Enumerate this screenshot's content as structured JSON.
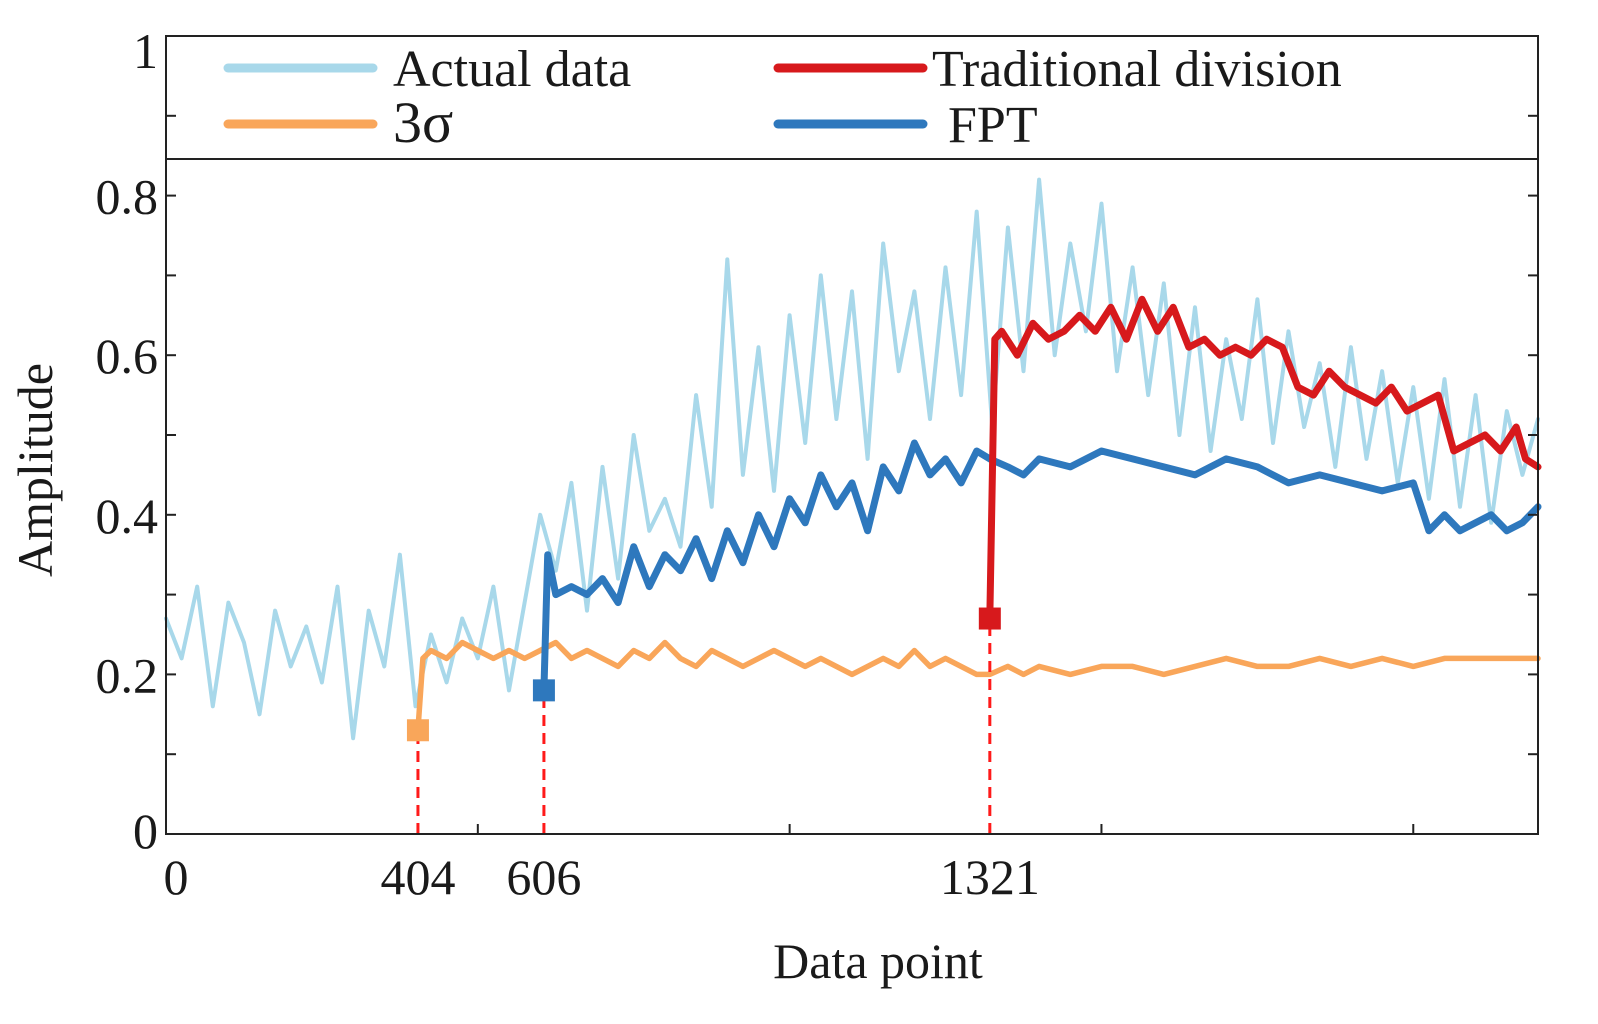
{
  "chart_data": {
    "type": "line",
    "title": "",
    "xlabel": "Data point",
    "ylabel": "Amplitude",
    "xlim": [
      0,
      2200
    ],
    "ylim": [
      0,
      1
    ],
    "x_ticks": [
      0,
      500,
      1000,
      1500,
      2000
    ],
    "x_tick_labels": [
      {
        "value": 0,
        "label": "0"
      },
      {
        "value": 404,
        "label": "404"
      },
      {
        "value": 606,
        "label": "606"
      },
      {
        "value": 1321,
        "label": "1321"
      }
    ],
    "y_ticks": [
      0,
      0.1,
      0.2,
      0.3,
      0.4,
      0.5,
      0.6,
      0.7,
      0.8,
      0.9,
      1
    ],
    "y_tick_labels": [
      {
        "value": 0,
        "label": "0"
      },
      {
        "value": 0.2,
        "label": "0.2"
      },
      {
        "value": 0.4,
        "label": "0.4"
      },
      {
        "value": 0.6,
        "label": "0.6"
      },
      {
        "value": 0.8,
        "label": "0.8"
      },
      {
        "value": 1,
        "label": "1"
      }
    ],
    "legend_position": "top",
    "series": [
      {
        "name": "Actual data",
        "color": "#a8d8ea",
        "x": [
          0,
          25,
          50,
          75,
          100,
          125,
          150,
          175,
          200,
          225,
          250,
          275,
          300,
          325,
          350,
          375,
          400,
          425,
          450,
          475,
          500,
          525,
          550,
          575,
          600,
          625,
          650,
          675,
          700,
          725,
          750,
          775,
          800,
          825,
          850,
          875,
          900,
          925,
          950,
          975,
          1000,
          1025,
          1050,
          1075,
          1100,
          1125,
          1150,
          1175,
          1200,
          1225,
          1250,
          1275,
          1300,
          1325,
          1350,
          1375,
          1400,
          1425,
          1450,
          1475,
          1500,
          1525,
          1550,
          1575,
          1600,
          1625,
          1650,
          1675,
          1700,
          1725,
          1750,
          1775,
          1800,
          1825,
          1850,
          1875,
          1900,
          1925,
          1950,
          1975,
          2000,
          2025,
          2050,
          2075,
          2100,
          2125,
          2150,
          2175,
          2200
        ],
        "values": [
          0.27,
          0.22,
          0.31,
          0.16,
          0.29,
          0.24,
          0.15,
          0.28,
          0.21,
          0.26,
          0.19,
          0.31,
          0.12,
          0.28,
          0.21,
          0.35,
          0.16,
          0.25,
          0.19,
          0.27,
          0.22,
          0.31,
          0.18,
          0.29,
          0.4,
          0.33,
          0.44,
          0.28,
          0.46,
          0.32,
          0.5,
          0.38,
          0.42,
          0.36,
          0.55,
          0.41,
          0.72,
          0.45,
          0.61,
          0.43,
          0.65,
          0.49,
          0.7,
          0.52,
          0.68,
          0.47,
          0.74,
          0.58,
          0.68,
          0.52,
          0.71,
          0.55,
          0.78,
          0.51,
          0.76,
          0.58,
          0.82,
          0.6,
          0.74,
          0.63,
          0.79,
          0.58,
          0.71,
          0.55,
          0.69,
          0.5,
          0.66,
          0.48,
          0.62,
          0.52,
          0.67,
          0.49,
          0.63,
          0.51,
          0.59,
          0.46,
          0.61,
          0.47,
          0.58,
          0.44,
          0.56,
          0.42,
          0.57,
          0.41,
          0.55,
          0.39,
          0.53,
          0.45,
          0.52
        ]
      },
      {
        "name": "3σ",
        "color": "#f9a65a",
        "x": [
          404,
          412,
          425,
          450,
          475,
          500,
          525,
          550,
          575,
          600,
          625,
          650,
          675,
          700,
          725,
          750,
          775,
          800,
          825,
          850,
          875,
          900,
          925,
          950,
          975,
          1000,
          1025,
          1050,
          1075,
          1100,
          1125,
          1150,
          1175,
          1200,
          1225,
          1250,
          1275,
          1300,
          1321,
          1350,
          1375,
          1400,
          1450,
          1500,
          1550,
          1600,
          1650,
          1700,
          1750,
          1800,
          1850,
          1900,
          1950,
          2000,
          2050,
          2100,
          2150,
          2200
        ],
        "values": [
          0.13,
          0.22,
          0.23,
          0.22,
          0.24,
          0.23,
          0.22,
          0.23,
          0.22,
          0.23,
          0.24,
          0.22,
          0.23,
          0.22,
          0.21,
          0.23,
          0.22,
          0.24,
          0.22,
          0.21,
          0.23,
          0.22,
          0.21,
          0.22,
          0.23,
          0.22,
          0.21,
          0.22,
          0.21,
          0.2,
          0.21,
          0.22,
          0.21,
          0.23,
          0.21,
          0.22,
          0.21,
          0.2,
          0.2,
          0.21,
          0.2,
          0.21,
          0.2,
          0.21,
          0.21,
          0.2,
          0.21,
          0.22,
          0.21,
          0.21,
          0.22,
          0.21,
          0.22,
          0.21,
          0.22,
          0.22,
          0.22,
          0.22
        ]
      },
      {
        "name": "FPT",
        "color": "#2e78bd",
        "x": [
          606,
          612,
          625,
          650,
          675,
          700,
          725,
          750,
          775,
          800,
          825,
          850,
          875,
          900,
          925,
          950,
          975,
          1000,
          1025,
          1050,
          1075,
          1100,
          1125,
          1150,
          1175,
          1200,
          1225,
          1250,
          1275,
          1300,
          1321,
          1350,
          1375,
          1400,
          1450,
          1500,
          1550,
          1600,
          1650,
          1700,
          1750,
          1800,
          1850,
          1900,
          1950,
          2000,
          2025,
          2050,
          2075,
          2100,
          2125,
          2150,
          2175,
          2200
        ],
        "values": [
          0.18,
          0.35,
          0.3,
          0.31,
          0.3,
          0.32,
          0.29,
          0.36,
          0.31,
          0.35,
          0.33,
          0.37,
          0.32,
          0.38,
          0.34,
          0.4,
          0.36,
          0.42,
          0.39,
          0.45,
          0.41,
          0.44,
          0.38,
          0.46,
          0.43,
          0.49,
          0.45,
          0.47,
          0.44,
          0.48,
          0.47,
          0.46,
          0.45,
          0.47,
          0.46,
          0.48,
          0.47,
          0.46,
          0.45,
          0.47,
          0.46,
          0.44,
          0.45,
          0.44,
          0.43,
          0.44,
          0.38,
          0.4,
          0.38,
          0.39,
          0.4,
          0.38,
          0.39,
          0.41
        ]
      },
      {
        "name": "Traditional division",
        "color": "#d7191c",
        "x": [
          1321,
          1329,
          1340,
          1365,
          1390,
          1415,
          1440,
          1465,
          1490,
          1515,
          1540,
          1565,
          1590,
          1615,
          1640,
          1665,
          1690,
          1715,
          1740,
          1765,
          1790,
          1815,
          1840,
          1865,
          1890,
          1915,
          1940,
          1965,
          1990,
          2015,
          2040,
          2065,
          2090,
          2115,
          2140,
          2165,
          2180,
          2200
        ],
        "values": [
          0.27,
          0.62,
          0.63,
          0.6,
          0.64,
          0.62,
          0.63,
          0.65,
          0.63,
          0.66,
          0.62,
          0.67,
          0.63,
          0.66,
          0.61,
          0.62,
          0.6,
          0.61,
          0.6,
          0.62,
          0.61,
          0.56,
          0.55,
          0.58,
          0.56,
          0.55,
          0.54,
          0.56,
          0.53,
          0.54,
          0.55,
          0.48,
          0.49,
          0.5,
          0.48,
          0.51,
          0.47,
          0.46
        ]
      }
    ],
    "markers": [
      {
        "series": "3σ",
        "x": 404,
        "y": 0.13
      },
      {
        "series": "FPT",
        "x": 606,
        "y": 0.18
      },
      {
        "series": "Traditional division",
        "x": 1321,
        "y": 0.27
      }
    ],
    "vertical_lines": [
      {
        "x": 404,
        "from": 0,
        "to": 0.13,
        "color": "#ff1a1a",
        "style": "dashed"
      },
      {
        "x": 606,
        "from": 0,
        "to": 0.18,
        "color": "#ff1a1a",
        "style": "dashed"
      },
      {
        "x": 1321,
        "from": 0,
        "to": 0.27,
        "color": "#ff1a1a",
        "style": "dashed"
      }
    ]
  }
}
